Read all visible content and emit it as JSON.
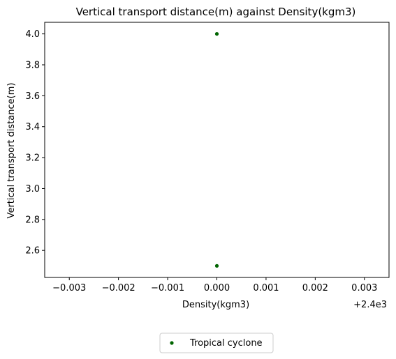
{
  "chart_data": {
    "type": "scatter",
    "title": "Vertical transport distance(m) against Density(kgm3)",
    "xlabel": "Density(kgm3)",
    "ylabel": "Vertical transport distance(m)",
    "x_offset_label": "+2.4e3",
    "xlim": [
      2399.9965,
      2400.0035
    ],
    "ylim": [
      2.425,
      4.075
    ],
    "x_ticks": [
      2399.997,
      2399.998,
      2399.999,
      2400.0,
      2400.001,
      2400.002,
      2400.003
    ],
    "x_tick_labels": [
      "−0.003",
      "−0.002",
      "−0.001",
      "0.000",
      "0.001",
      "0.002",
      "0.003"
    ],
    "y_ticks": [
      2.6,
      2.8,
      3.0,
      3.2,
      3.4,
      3.6,
      3.8,
      4.0
    ],
    "y_tick_labels": [
      "2.6",
      "2.8",
      "3.0",
      "3.2",
      "3.4",
      "3.6",
      "3.8",
      "4.0"
    ],
    "grid": false,
    "legend_position": "bottom-center-outside",
    "series": [
      {
        "name": "Tropical cyclone",
        "color": "#006400",
        "marker": "circle",
        "points": [
          {
            "x": 2400.0,
            "y": 4.0
          },
          {
            "x": 2400.0,
            "y": 2.5
          }
        ]
      }
    ]
  }
}
